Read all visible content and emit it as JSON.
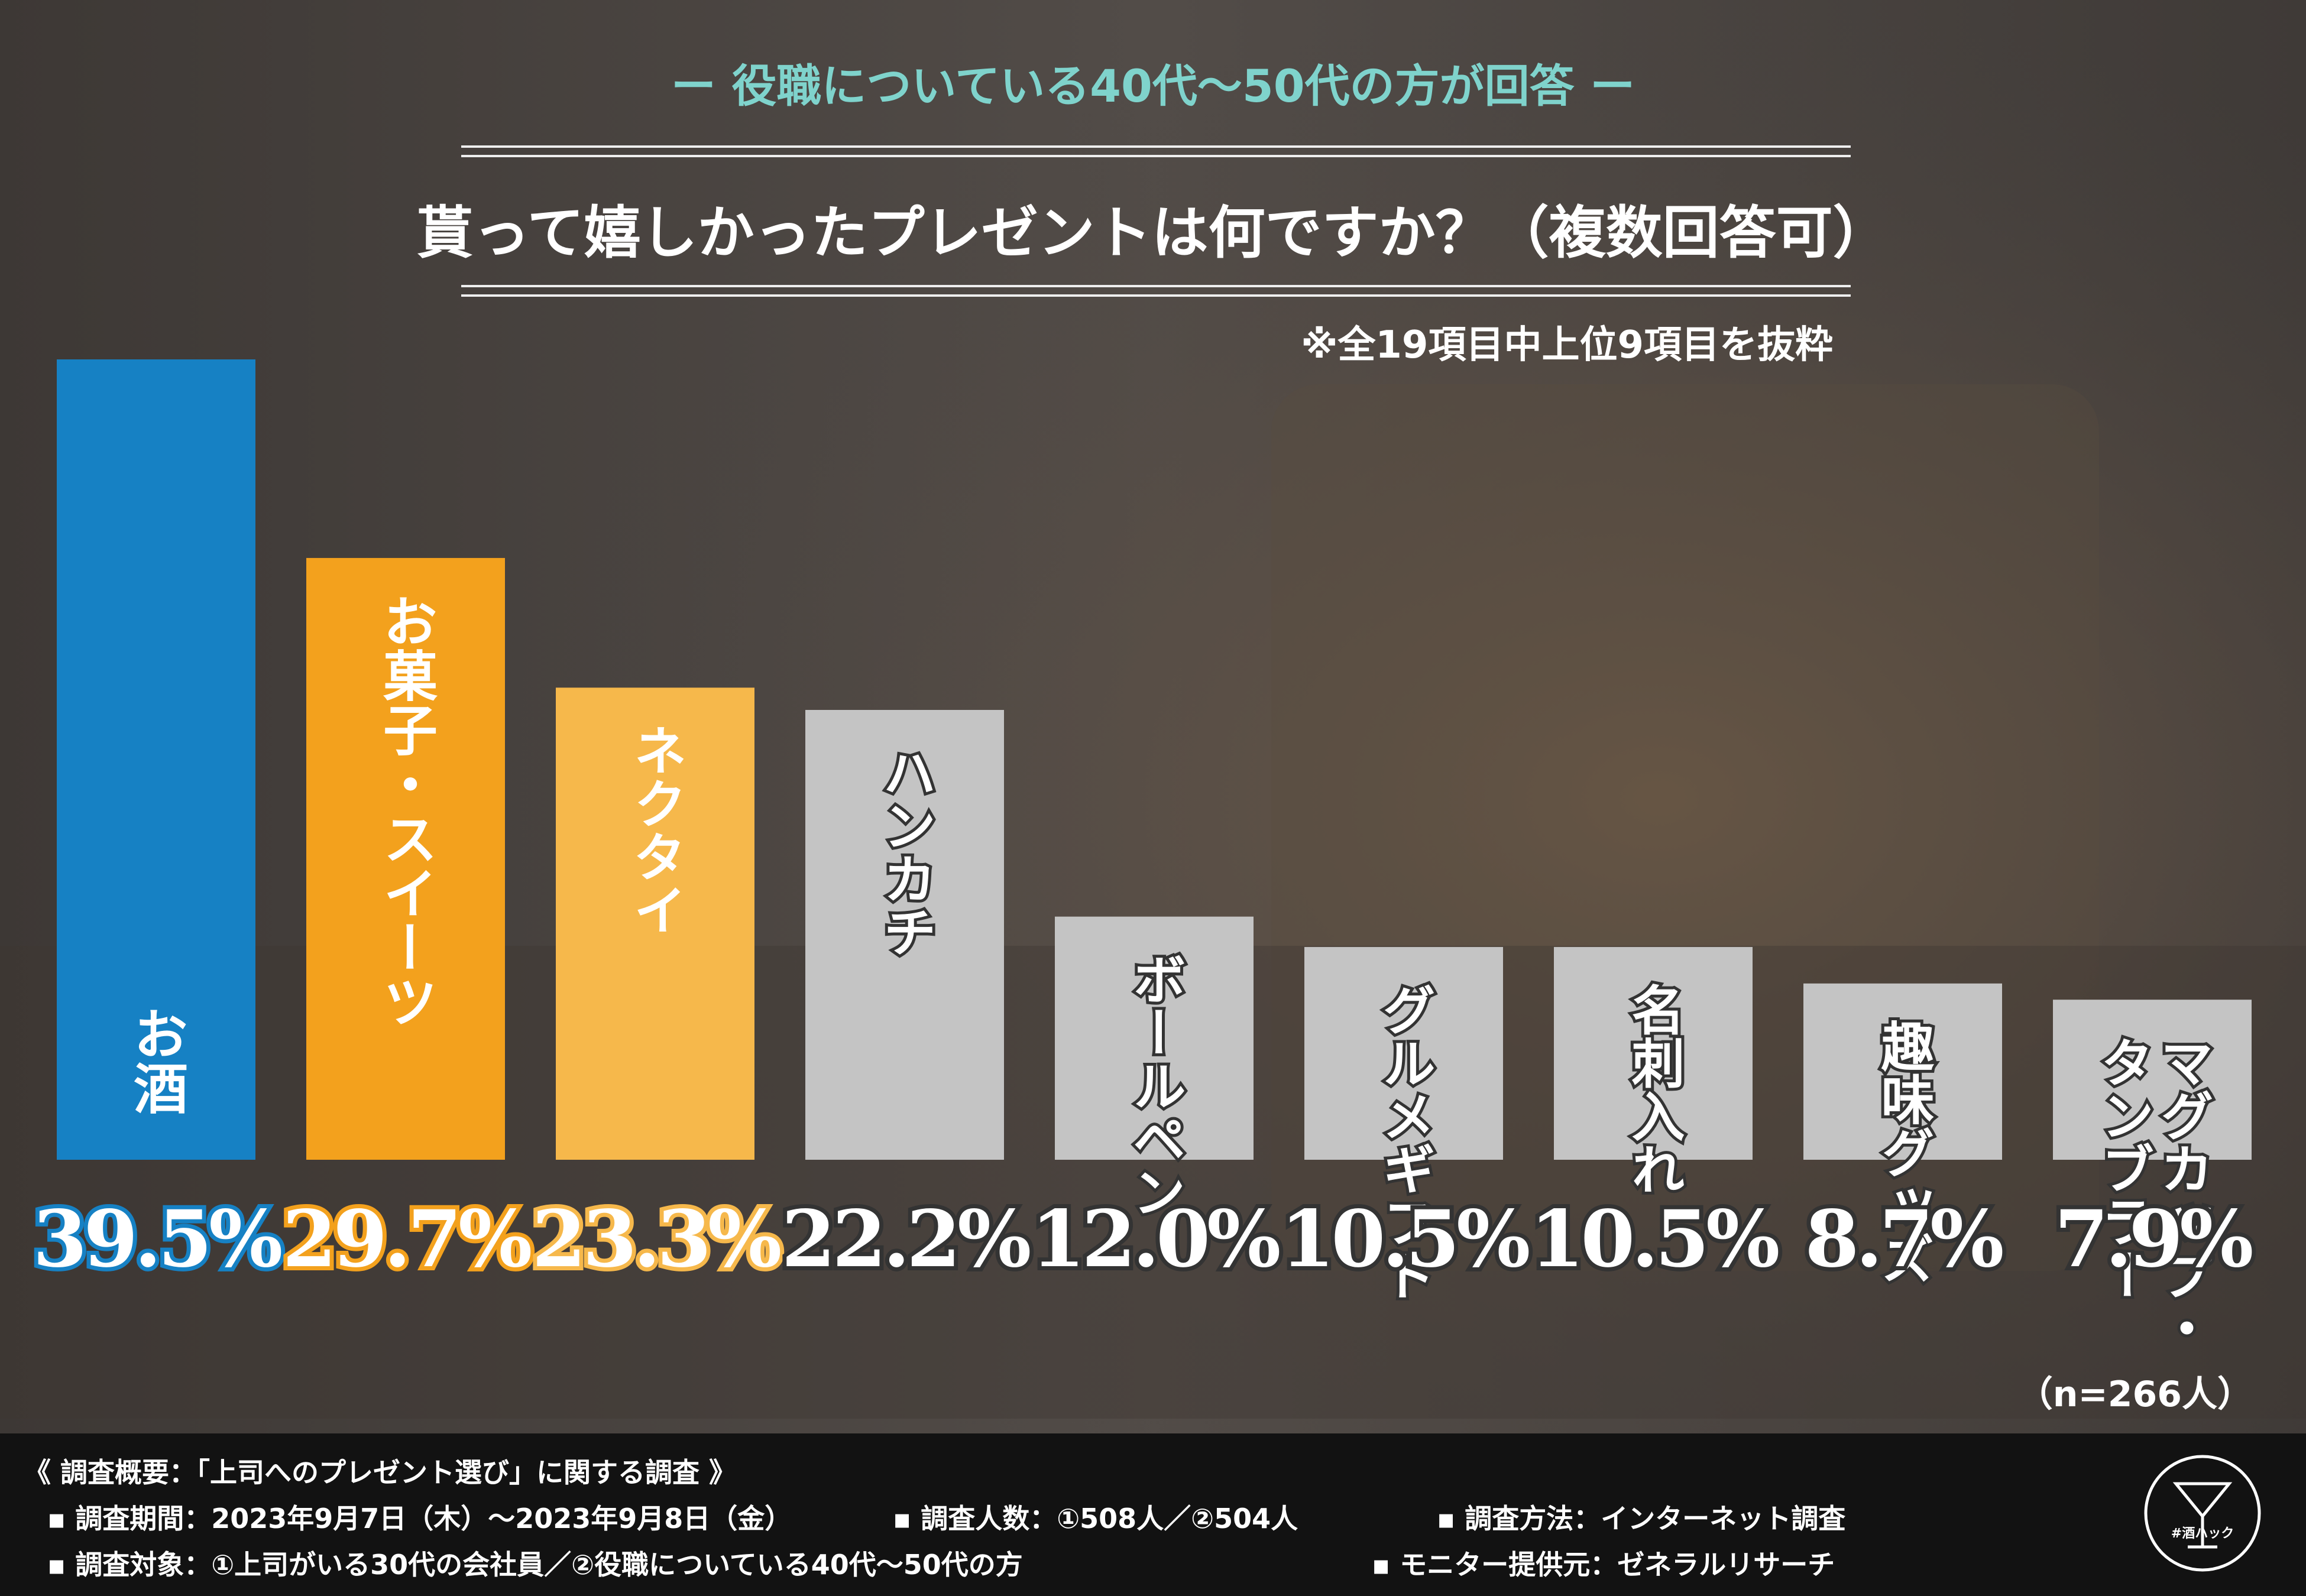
{
  "header": {
    "subtitle": "ー 役職についている40代〜50代の方が回答 ー",
    "title": "貰って嬉しかったプレゼントは何ですか？（複数回答可）",
    "note": "※全19項目中上位9項目を抜粋"
  },
  "colors": {
    "blue": "#1681c4",
    "orange": "#f3a11d",
    "light_orange": "#f6b84b",
    "gray": "#c4c4c4",
    "title_accent": "#7fd3cc"
  },
  "chart_data": {
    "type": "bar",
    "categories": [
      "お酒",
      "お菓子・スイーツ",
      "ネクタイ",
      "ハンカチ",
      "ボールペン",
      "グルメギフト",
      "名刺入れ",
      "趣味グッズ",
      "マグカップ・\nタンブラー"
    ],
    "values": [
      39.5,
      29.7,
      23.3,
      22.2,
      12.0,
      10.5,
      10.5,
      8.7,
      7.9
    ],
    "value_labels": [
      "39.5%",
      "29.7%",
      "23.3%",
      "22.2%",
      "12.0%",
      "10.5%",
      "10.5%",
      "8.7%",
      "7.9%"
    ],
    "bar_colors": [
      "#1681c4",
      "#f3a11d",
      "#f6b84b",
      "#c4c4c4",
      "#c4c4c4",
      "#c4c4c4",
      "#c4c4c4",
      "#c4c4c4",
      "#c4c4c4"
    ],
    "ylim": [
      0,
      39.5
    ],
    "grid": false,
    "legend": "none"
  },
  "sample_size": "（n=266人）",
  "footer": {
    "heading": "《 調査概要：「上司へのプレゼント選び」に関する調査 》",
    "period": "▪ 調査期間：2023年9月7日（木）〜2023年9月8日（金）",
    "count": "▪ 調査人数：①508人／②504人",
    "method": "▪ 調査方法：インターネット調査",
    "target": "▪ 調査対象：①上司がいる30代の会社員／②役職についている40代〜50代の方",
    "provider": "▪ モニター提供元：ゼネラルリサーチ"
  },
  "logo": {
    "text": "#酒ハック"
  }
}
